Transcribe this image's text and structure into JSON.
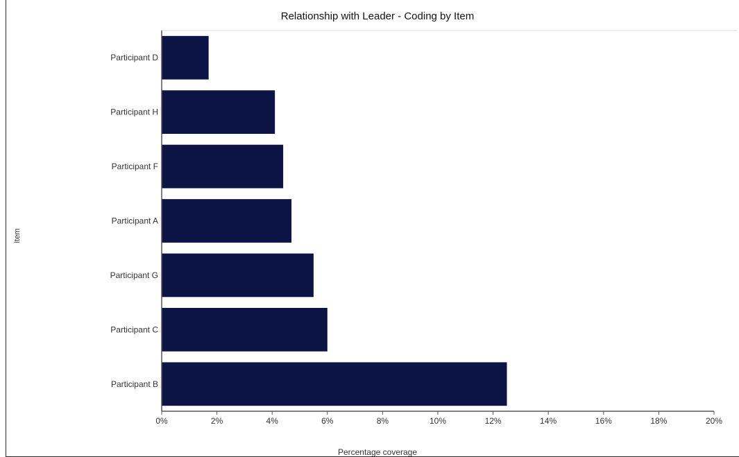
{
  "chart_data": {
    "type": "bar",
    "orientation": "horizontal",
    "title": "Relationship with Leader - Coding by Item",
    "xlabel": "Percentage coverage",
    "ylabel": "Item",
    "categories": [
      "Participant D",
      "Participant H",
      "Participant F",
      "Participant A",
      "Participant G",
      "Participant C",
      "Participant B"
    ],
    "values": [
      1.7,
      4.1,
      4.4,
      4.7,
      5.5,
      6.0,
      12.5
    ],
    "xlim": [
      0,
      20
    ],
    "xticks": [
      "0%",
      "2%",
      "4%",
      "6%",
      "8%",
      "10%",
      "12%",
      "14%",
      "16%",
      "18%",
      "20%"
    ],
    "xtick_values": [
      0,
      2,
      4,
      6,
      8,
      10,
      12,
      14,
      16,
      18,
      20
    ],
    "grid": false,
    "legend": "none",
    "colors": {
      "bar": "#0c1445",
      "axis": "#555555",
      "text": "#333333",
      "title_rule": "#dddddd"
    }
  }
}
